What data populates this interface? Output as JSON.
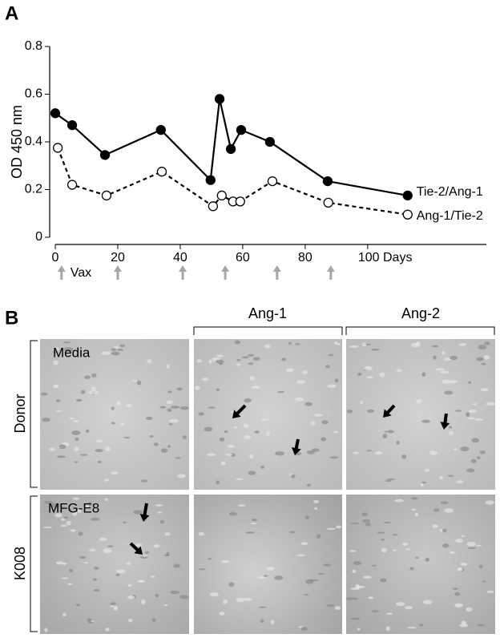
{
  "chart_data": {
    "type": "line",
    "panel_label": "A",
    "ylabel": "OD 450 nm",
    "xlim": [
      0,
      138
    ],
    "ylim": [
      0,
      0.8
    ],
    "xticks": [
      0,
      20,
      40,
      60,
      80,
      {
        "value": 100,
        "label": "100 Days"
      }
    ],
    "yticks": [
      0,
      0.2,
      0.4,
      0.6,
      0.8
    ],
    "series": [
      {
        "name": "Tie-2/Ang-1",
        "color": "#000000",
        "fill": "#000000",
        "dashed": false,
        "x": [
          0,
          5.4,
          15.9,
          33.8,
          49.7,
          52.6,
          56.2,
          59.5,
          68.7,
          87.2,
          112.8
        ],
        "values": [
          0.52,
          0.47,
          0.345,
          0.45,
          0.24,
          0.58,
          0.37,
          0.45,
          0.4,
          0.235,
          0.175
        ]
      },
      {
        "name": "Ang-1/Tie-2",
        "color": "#000000",
        "fill": "#ffffff",
        "dashed": true,
        "x": [
          0.8,
          5.4,
          16.4,
          34.1,
          50.5,
          53.3,
          56.9,
          59.2,
          69.5,
          87.4,
          112.8
        ],
        "values": [
          0.375,
          0.22,
          0.175,
          0.275,
          0.13,
          0.175,
          0.15,
          0.15,
          0.235,
          0.145,
          0.095
        ]
      }
    ],
    "vaccinations": {
      "label": "Vax",
      "color": "#a6a6a6",
      "x": [
        2,
        20,
        40.8,
        54.4,
        71,
        88.2
      ]
    }
  },
  "panel_b": {
    "panel_label": "B",
    "columns": [
      "Ang-1",
      "Ang-2"
    ],
    "rows": [
      "Donor",
      "K008"
    ],
    "image_labels": [
      "Media",
      "MFG-E8"
    ]
  }
}
